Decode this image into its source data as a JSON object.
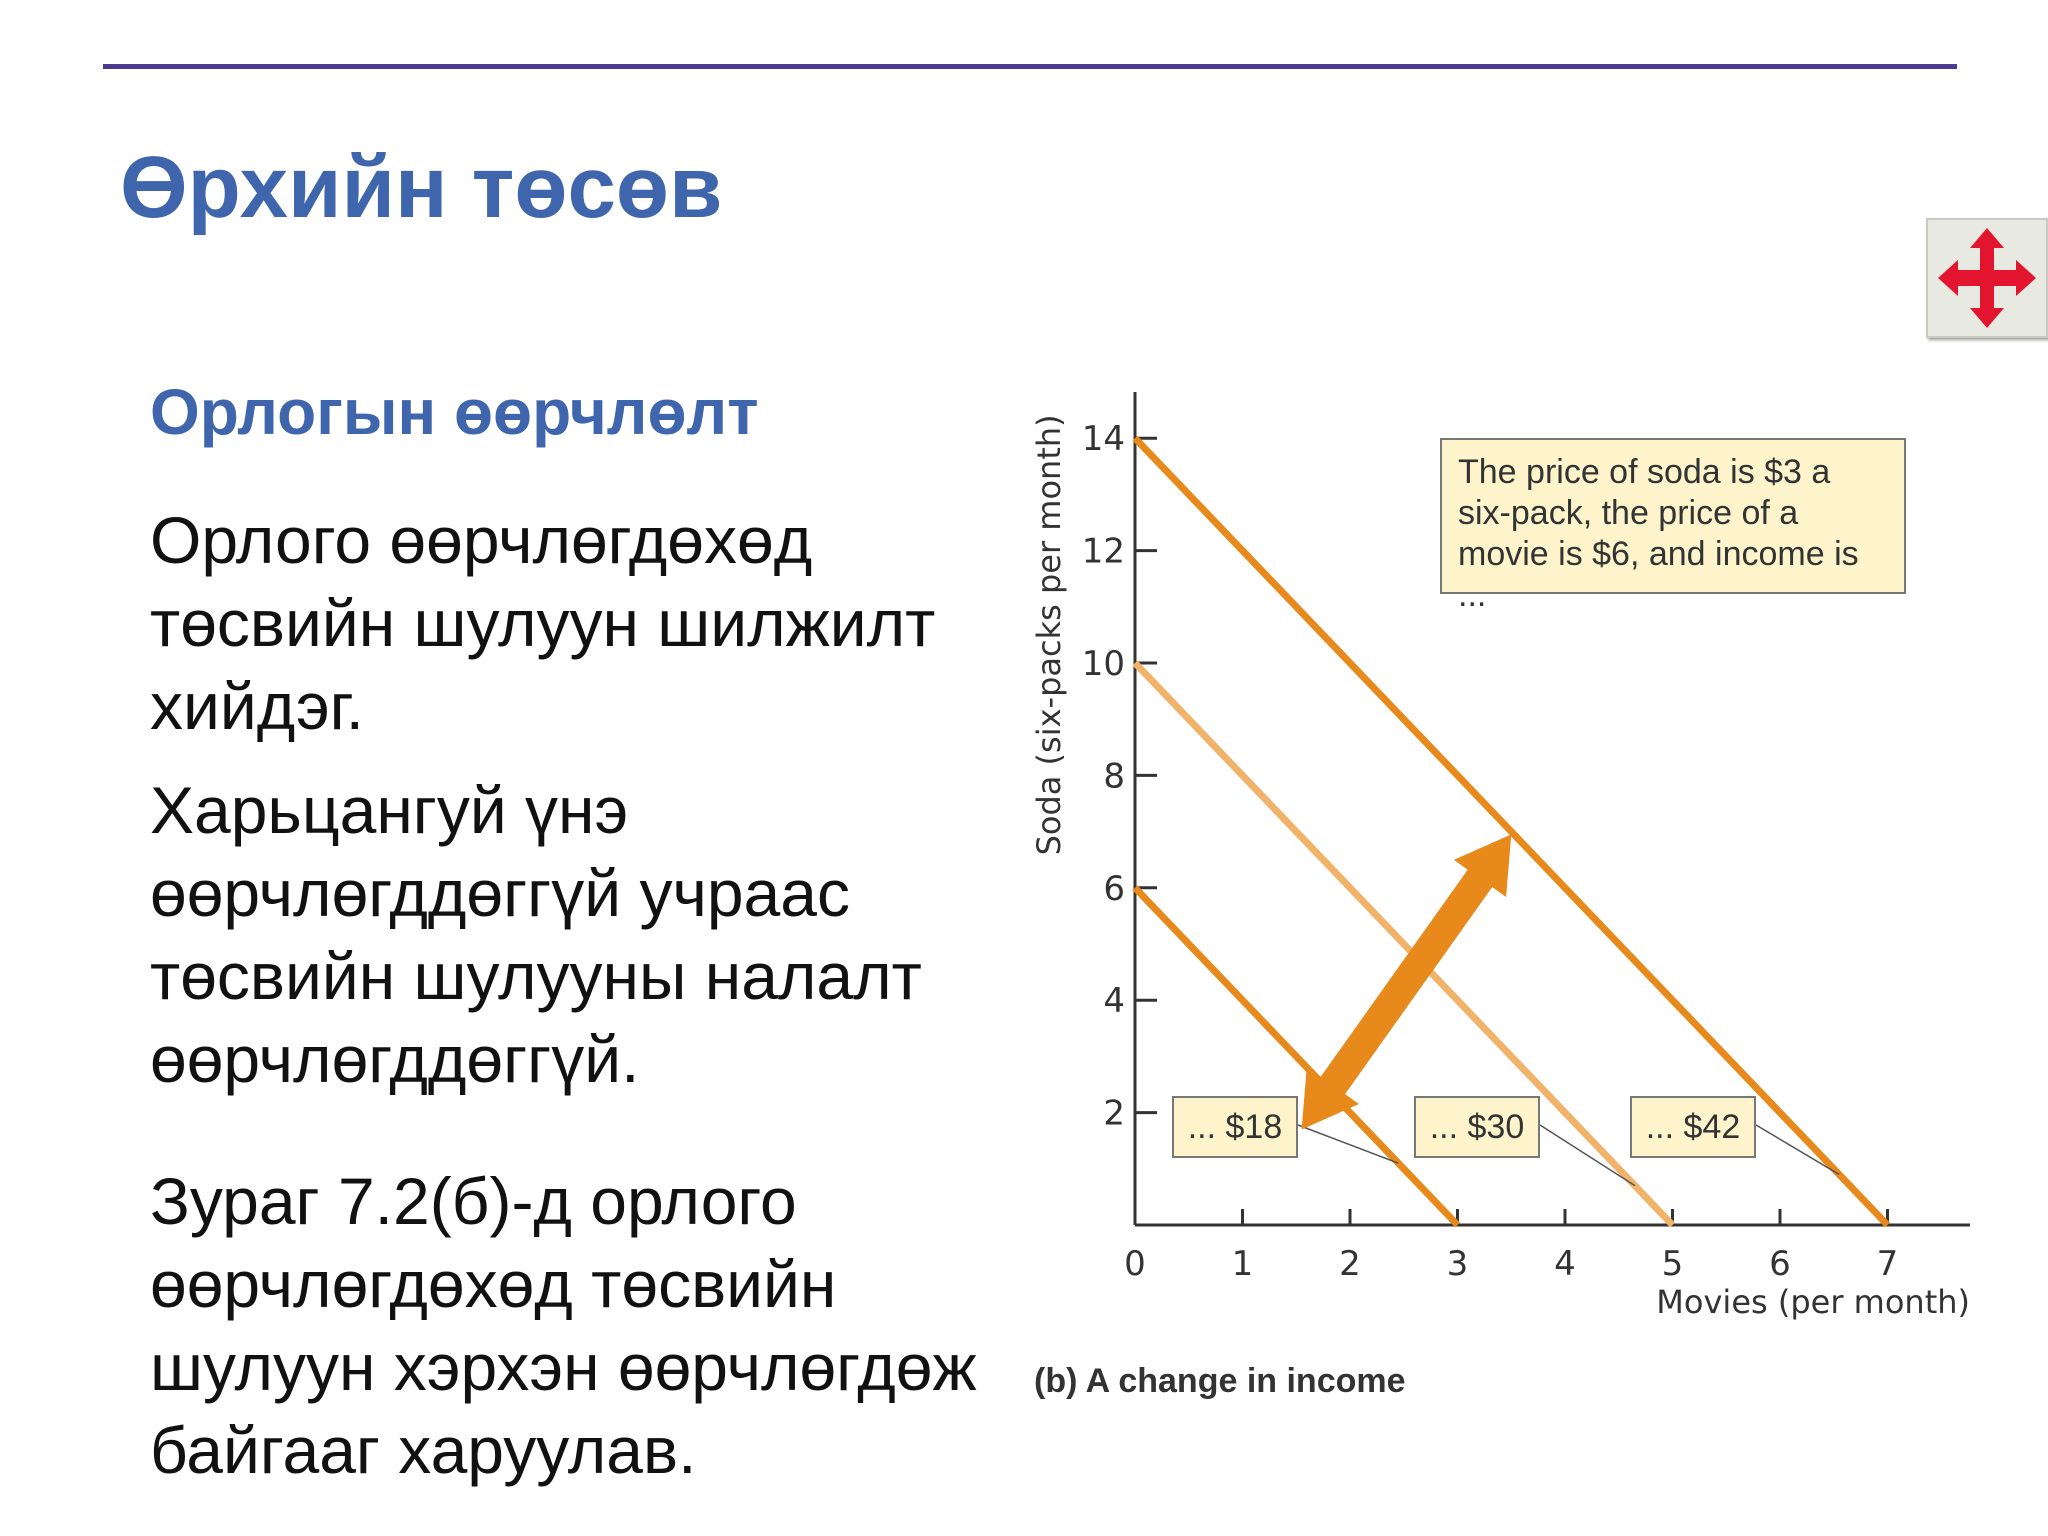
{
  "slide": {
    "title": "Өрхийн төсөв",
    "subtitle": "Орлогын өөрчлөлт",
    "paragraphs": [
      "Орлого өөрчлөгдөхөд төсвийн шулуун шилжилт хийдэг.",
      "Харьцангуй үнэ өөрчлөгддөггүй учраас төсвийн шулууны налалт өөрчлөгддөггүй.",
      "Зураг 7.2(б)-д орлого өөрчлөгдөхөд төсвийн шулуун хэрхэн өөрчлөгдөж байгааг харуулав."
    ],
    "move_icon": "four-way-arrow-icon"
  },
  "chart_data": {
    "type": "line",
    "caption": "(b) A change in income",
    "xlabel": "Movies (per month)",
    "ylabel": "Soda (six-packs per month)",
    "x_ticks": [
      "0",
      "1",
      "2",
      "3",
      "4",
      "5",
      "6",
      "7"
    ],
    "y_ticks": [
      "2",
      "4",
      "6",
      "8",
      "10",
      "12",
      "14"
    ],
    "xlim": [
      0,
      7.7
    ],
    "ylim": [
      0,
      15
    ],
    "grid": false,
    "note": "The price of soda is $3 a six-pack, the price of a movie is $6, and income is ...",
    "series": [
      {
        "name": "... $18",
        "x": [
          0,
          3
        ],
        "y": [
          6,
          0
        ],
        "color": "#e8891c"
      },
      {
        "name": "... $30",
        "x": [
          0,
          5
        ],
        "y": [
          10,
          0
        ],
        "color": "#f1b26a"
      },
      {
        "name": "... $42",
        "x": [
          0,
          7
        ],
        "y": [
          14,
          0
        ],
        "color": "#e8891c"
      }
    ],
    "arrow_color": "#e8891c"
  }
}
